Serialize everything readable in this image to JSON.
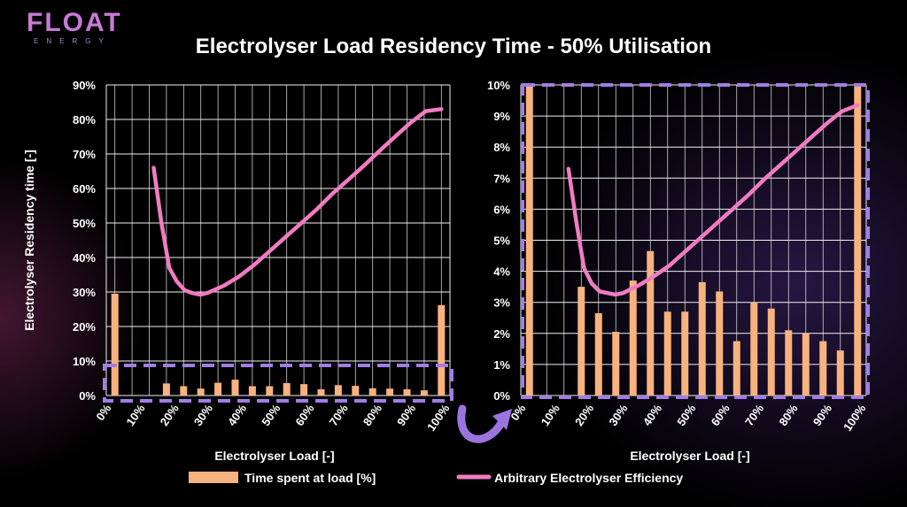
{
  "logo": {
    "word": "FLOAT",
    "sub": "ENERGY"
  },
  "title": "Electrolyser Load Residency Time - 50% Utilisation",
  "colors": {
    "bar": "#f8b27e",
    "line": "#f07cc2",
    "highlight": "#a27de6",
    "grid": "#f1f1f1",
    "arrow": "#9b74e0"
  },
  "legend": {
    "bar_label": "Time spent at load [%]",
    "line_label": "Arbitrary Electrolyser Efficiency"
  },
  "chart_data": [
    {
      "type": "bar",
      "xlabel": "Electrolyser Load [-]",
      "ylabel": "Electrolyser Residency time [-]",
      "ylim": [
        0,
        90
      ],
      "yticks": [
        "0%",
        "10%",
        "20%",
        "30%",
        "40%",
        "50%",
        "60%",
        "70%",
        "80%",
        "90%"
      ],
      "xtick_labels": [
        "0%",
        "10%",
        "20%",
        "30%",
        "40%",
        "50%",
        "60%",
        "70%",
        "80%",
        "90%",
        "100%"
      ],
      "x": [
        0,
        10,
        15,
        20,
        25,
        30,
        35,
        40,
        45,
        50,
        55,
        60,
        65,
        70,
        75,
        80,
        85,
        90,
        95,
        100
      ],
      "series": [
        {
          "values": [
            29.5,
            0,
            0,
            3.5,
            2.7,
            2.0,
            3.7,
            4.6,
            2.7,
            2.7,
            3.6,
            3.3,
            1.8,
            3.0,
            2.8,
            2.1,
            2.0,
            1.8,
            1.5,
            26.2
          ]
        },
        {
          "type": "line",
          "x": [
            7.5,
            10,
            12.5,
            15,
            17.5,
            20,
            22.5,
            25,
            30,
            35,
            40,
            45,
            50,
            55,
            60,
            65,
            70,
            75,
            80,
            85,
            90,
            95,
            100
          ],
          "values": [
            66,
            50,
            37,
            33,
            30.5,
            29.7,
            29.2,
            29.8,
            31.8,
            34.5,
            38,
            42,
            46,
            50,
            54,
            58.5,
            62.5,
            66.5,
            70.8,
            74.9,
            79,
            82.4,
            83
          ]
        }
      ],
      "grid": true
    },
    {
      "type": "bar",
      "xlabel": "Electrolyser Load [-]",
      "ylim": [
        0,
        10
      ],
      "yticks": [
        "0%",
        "1%",
        "2%",
        "3%",
        "4%",
        "5%",
        "6%",
        "7%",
        "8%",
        "9%",
        "10%"
      ],
      "xtick_labels": [
        "0%",
        "10%",
        "20%",
        "30%",
        "40%",
        "50%",
        "60%",
        "70%",
        "80%",
        "90%",
        "100%"
      ],
      "x": [
        0,
        10,
        15,
        20,
        25,
        30,
        35,
        40,
        45,
        50,
        55,
        60,
        65,
        70,
        75,
        80,
        85,
        90,
        95,
        100
      ],
      "series": [
        {
          "values": [
            10.2,
            0,
            0,
            3.5,
            2.65,
            2.05,
            3.7,
            4.65,
            2.7,
            2.7,
            3.65,
            3.35,
            1.75,
            3.0,
            2.8,
            2.1,
            2.0,
            1.75,
            1.45,
            10.2
          ]
        },
        {
          "type": "line",
          "x": [
            7.5,
            10,
            12.5,
            15,
            17.5,
            20,
            22.5,
            25,
            30,
            35,
            40,
            45,
            50,
            55,
            60,
            65,
            70,
            75,
            80,
            85,
            90,
            95,
            100
          ],
          "values": [
            7.3,
            5.6,
            4.1,
            3.6,
            3.35,
            3.3,
            3.25,
            3.3,
            3.55,
            3.85,
            4.2,
            4.65,
            5.1,
            5.55,
            6.0,
            6.45,
            6.95,
            7.4,
            7.85,
            8.3,
            8.75,
            9.15,
            9.35
          ]
        }
      ],
      "grid": true
    }
  ]
}
